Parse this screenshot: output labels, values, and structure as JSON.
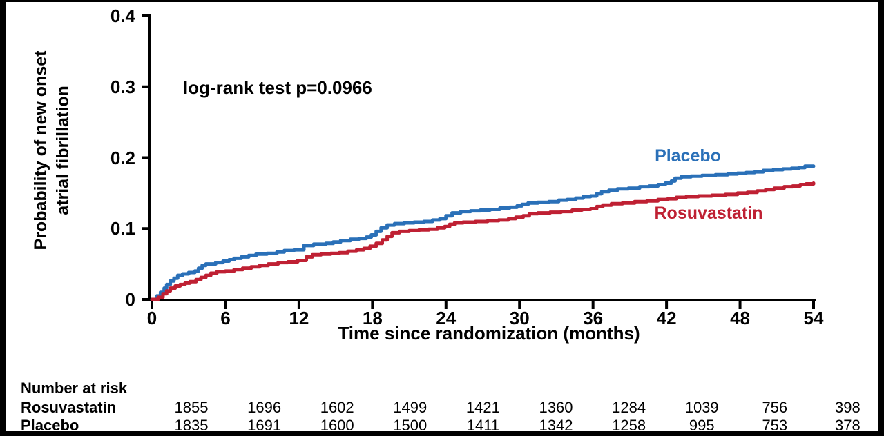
{
  "figure": {
    "y_axis_label": "Probability of new onset\natrial fibrillation",
    "x_axis_label": "Time since randomization (months)",
    "annotation": "log-rank test p=0.0966"
  },
  "chart_data": {
    "type": "line",
    "subtype": "kaplan-meier-step",
    "title": "",
    "xlabel": "Time since randomization (months)",
    "ylabel": "Probability of new onset atrial fibrillation",
    "annotation": "log-rank test p=0.0966",
    "xlim": [
      0,
      54
    ],
    "ylim": [
      0,
      0.4
    ],
    "x_ticks": [
      0,
      6,
      12,
      18,
      24,
      30,
      36,
      42,
      48,
      54
    ],
    "y_ticks": [
      0,
      0.1,
      0.2,
      0.3,
      0.4
    ],
    "y_tick_labels": [
      "0",
      "0.1",
      "0.2",
      "0.3",
      "0.4"
    ],
    "grid": false,
    "legend_position": "curve-labels-inline",
    "series": [
      {
        "name": "Placebo",
        "color": "#2A70B8",
        "points": [
          [
            0,
            0.0
          ],
          [
            0.4,
            0.005
          ],
          [
            0.7,
            0.01
          ],
          [
            1.0,
            0.016
          ],
          [
            1.2,
            0.021
          ],
          [
            1.5,
            0.026
          ],
          [
            1.8,
            0.03
          ],
          [
            2.1,
            0.034
          ],
          [
            2.5,
            0.036
          ],
          [
            3.0,
            0.038
          ],
          [
            3.5,
            0.04
          ],
          [
            3.8,
            0.044
          ],
          [
            4.1,
            0.048
          ],
          [
            4.4,
            0.05
          ],
          [
            5.2,
            0.052
          ],
          [
            5.8,
            0.054
          ],
          [
            6.3,
            0.056
          ],
          [
            6.7,
            0.058
          ],
          [
            7.3,
            0.06
          ],
          [
            7.9,
            0.062
          ],
          [
            8.5,
            0.064
          ],
          [
            9.4,
            0.065
          ],
          [
            10.2,
            0.067
          ],
          [
            10.8,
            0.069
          ],
          [
            11.6,
            0.07
          ],
          [
            12.4,
            0.076
          ],
          [
            13.2,
            0.078
          ],
          [
            14.2,
            0.079
          ],
          [
            14.8,
            0.081
          ],
          [
            15.4,
            0.083
          ],
          [
            16.2,
            0.085
          ],
          [
            16.9,
            0.086
          ],
          [
            17.5,
            0.088
          ],
          [
            17.9,
            0.091
          ],
          [
            18.3,
            0.096
          ],
          [
            18.7,
            0.101
          ],
          [
            19.2,
            0.105
          ],
          [
            19.8,
            0.107
          ],
          [
            20.6,
            0.108
          ],
          [
            21.4,
            0.109
          ],
          [
            22.2,
            0.11
          ],
          [
            22.9,
            0.112
          ],
          [
            23.5,
            0.114
          ],
          [
            24.0,
            0.118
          ],
          [
            24.5,
            0.122
          ],
          [
            25.2,
            0.124
          ],
          [
            26.0,
            0.125
          ],
          [
            26.8,
            0.126
          ],
          [
            27.6,
            0.127
          ],
          [
            28.4,
            0.129
          ],
          [
            29.2,
            0.13
          ],
          [
            29.8,
            0.132
          ],
          [
            30.2,
            0.134
          ],
          [
            30.7,
            0.136
          ],
          [
            31.5,
            0.137
          ],
          [
            32.4,
            0.138
          ],
          [
            33.2,
            0.14
          ],
          [
            33.9,
            0.141
          ],
          [
            34.6,
            0.143
          ],
          [
            35.2,
            0.145
          ],
          [
            35.8,
            0.146
          ],
          [
            36.3,
            0.149
          ],
          [
            36.7,
            0.152
          ],
          [
            37.3,
            0.154
          ],
          [
            38.0,
            0.156
          ],
          [
            38.9,
            0.157
          ],
          [
            39.8,
            0.159
          ],
          [
            40.6,
            0.16
          ],
          [
            41.3,
            0.162
          ],
          [
            41.9,
            0.164
          ],
          [
            42.4,
            0.167
          ],
          [
            42.7,
            0.171
          ],
          [
            43.2,
            0.173
          ],
          [
            44.0,
            0.174
          ],
          [
            44.9,
            0.175
          ],
          [
            46.0,
            0.176
          ],
          [
            47.0,
            0.177
          ],
          [
            47.8,
            0.178
          ],
          [
            48.5,
            0.179
          ],
          [
            49.2,
            0.18
          ],
          [
            49.9,
            0.182
          ],
          [
            50.7,
            0.183
          ],
          [
            51.5,
            0.184
          ],
          [
            52.2,
            0.185
          ],
          [
            52.8,
            0.186
          ],
          [
            53.3,
            0.188
          ],
          [
            54,
            0.188
          ]
        ]
      },
      {
        "name": "Rosuvastatin",
        "color": "#BF2033",
        "points": [
          [
            0,
            0.0
          ],
          [
            0.5,
            0.003
          ],
          [
            0.9,
            0.008
          ],
          [
            1.2,
            0.012
          ],
          [
            1.5,
            0.016
          ],
          [
            1.9,
            0.019
          ],
          [
            2.3,
            0.021
          ],
          [
            2.7,
            0.023
          ],
          [
            3.1,
            0.025
          ],
          [
            3.6,
            0.028
          ],
          [
            4.0,
            0.031
          ],
          [
            4.4,
            0.034
          ],
          [
            4.8,
            0.037
          ],
          [
            5.3,
            0.039
          ],
          [
            6.0,
            0.04
          ],
          [
            6.7,
            0.042
          ],
          [
            7.4,
            0.044
          ],
          [
            8.1,
            0.046
          ],
          [
            8.8,
            0.048
          ],
          [
            9.5,
            0.05
          ],
          [
            10.3,
            0.052
          ],
          [
            11.1,
            0.053
          ],
          [
            11.9,
            0.055
          ],
          [
            12.6,
            0.06
          ],
          [
            13.1,
            0.063
          ],
          [
            13.8,
            0.064
          ],
          [
            14.6,
            0.065
          ],
          [
            15.3,
            0.066
          ],
          [
            16.0,
            0.068
          ],
          [
            16.7,
            0.07
          ],
          [
            17.3,
            0.072
          ],
          [
            17.8,
            0.075
          ],
          [
            18.3,
            0.079
          ],
          [
            18.8,
            0.084
          ],
          [
            19.2,
            0.089
          ],
          [
            19.6,
            0.094
          ],
          [
            20.2,
            0.096
          ],
          [
            21.0,
            0.097
          ],
          [
            21.8,
            0.098
          ],
          [
            22.6,
            0.099
          ],
          [
            23.3,
            0.101
          ],
          [
            23.9,
            0.103
          ],
          [
            24.3,
            0.106
          ],
          [
            24.7,
            0.108
          ],
          [
            25.4,
            0.109
          ],
          [
            26.4,
            0.11
          ],
          [
            27.4,
            0.111
          ],
          [
            28.3,
            0.112
          ],
          [
            29.1,
            0.114
          ],
          [
            29.7,
            0.116
          ],
          [
            30.3,
            0.118
          ],
          [
            30.8,
            0.121
          ],
          [
            31.5,
            0.122
          ],
          [
            32.5,
            0.123
          ],
          [
            33.4,
            0.124
          ],
          [
            34.3,
            0.126
          ],
          [
            35.1,
            0.127
          ],
          [
            35.8,
            0.128
          ],
          [
            36.3,
            0.131
          ],
          [
            36.8,
            0.133
          ],
          [
            37.5,
            0.135
          ],
          [
            38.4,
            0.136
          ],
          [
            39.4,
            0.138
          ],
          [
            40.4,
            0.139
          ],
          [
            41.3,
            0.141
          ],
          [
            42.1,
            0.142
          ],
          [
            42.8,
            0.144
          ],
          [
            43.6,
            0.145
          ],
          [
            44.6,
            0.146
          ],
          [
            45.7,
            0.147
          ],
          [
            46.8,
            0.148
          ],
          [
            47.8,
            0.15
          ],
          [
            48.6,
            0.151
          ],
          [
            49.4,
            0.153
          ],
          [
            50.1,
            0.155
          ],
          [
            50.8,
            0.157
          ],
          [
            51.6,
            0.159
          ],
          [
            52.3,
            0.16
          ],
          [
            52.9,
            0.162
          ],
          [
            53.4,
            0.163
          ],
          [
            54,
            0.164
          ]
        ]
      }
    ]
  },
  "risk_table": {
    "title": "Number at risk",
    "time_points": [
      0,
      6,
      12,
      18,
      24,
      30,
      36,
      42,
      48,
      54
    ],
    "rows": [
      {
        "label": "Rosuvastatin",
        "values": [
          "1855",
          "1696",
          "1602",
          "1499",
          "1421",
          "1360",
          "1284",
          "1039",
          "756",
          "398"
        ]
      },
      {
        "label": "Placebo",
        "values": [
          "1835",
          "1691",
          "1600",
          "1500",
          "1411",
          "1342",
          "1258",
          "995",
          "753",
          "378"
        ]
      }
    ]
  },
  "colors": {
    "placebo": "#2A70B8",
    "rosuvastatin": "#BF2033",
    "axis": "#000000",
    "background": "#FFFFFF",
    "frame": "#000000"
  }
}
